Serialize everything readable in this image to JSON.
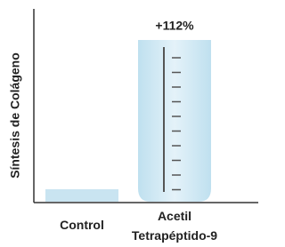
{
  "chart_data": {
    "type": "bar",
    "y_label": "Síntesis de Colágeno",
    "categories": [
      "Control",
      "Acetil Tetrapéptido-9"
    ],
    "values": [
      0,
      112
    ],
    "value_labels": [
      null,
      "+112%"
    ],
    "color": "#c9e4f1",
    "ylim": [
      -10,
      120
    ]
  }
}
